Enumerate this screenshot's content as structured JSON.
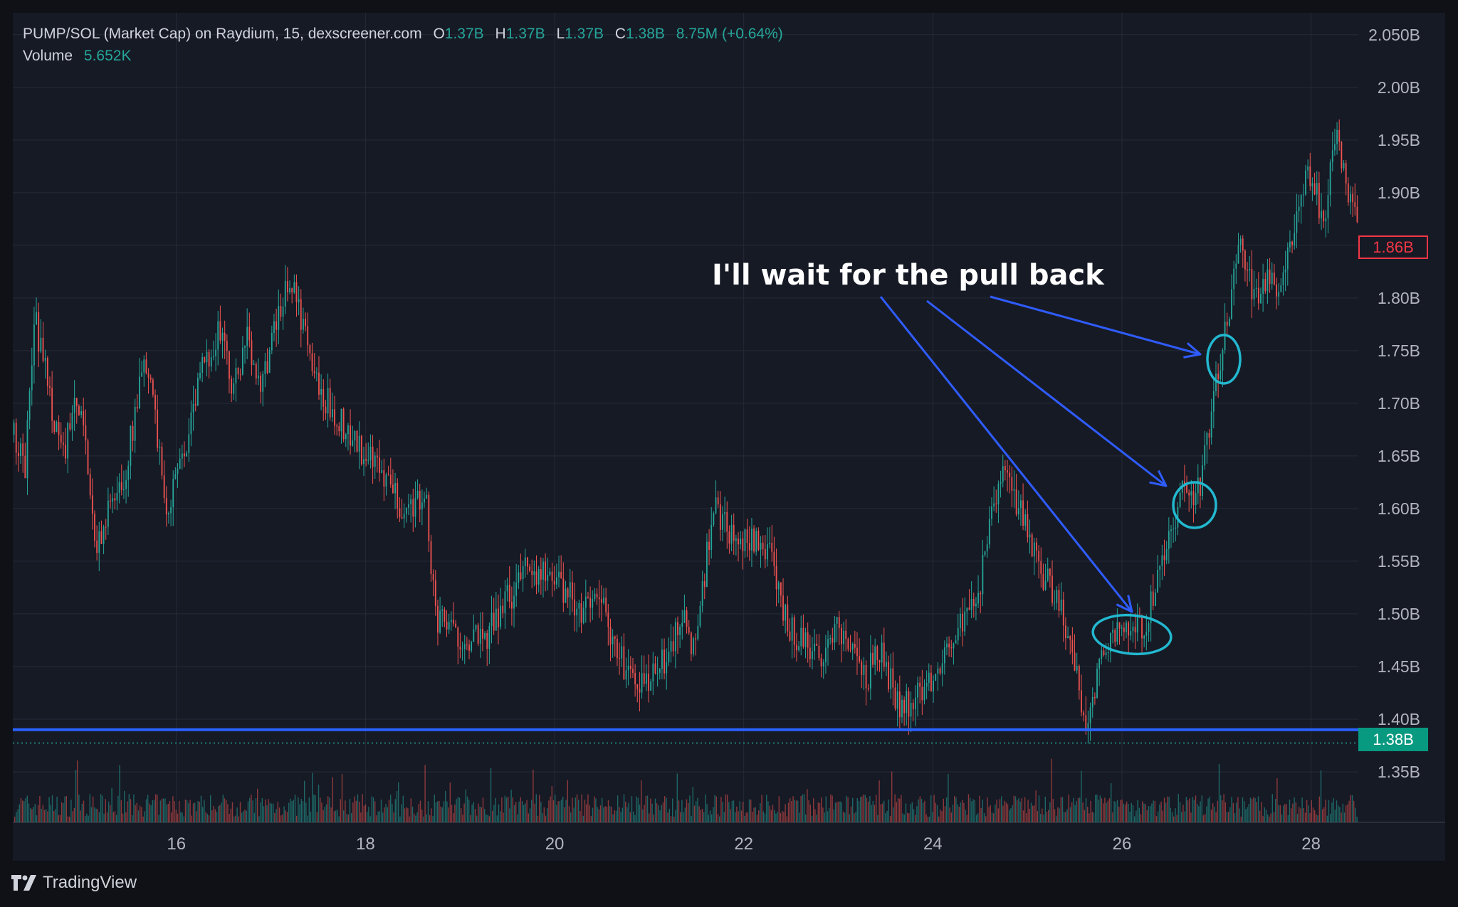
{
  "header": {
    "symbol": "PUMP/SOL (Market Cap) on Raydium, 15, dexscreener.com",
    "ohlc": [
      {
        "key": "O",
        "value": "1.37B"
      },
      {
        "key": "H",
        "value": "1.37B"
      },
      {
        "key": "L",
        "value": "1.37B"
      },
      {
        "key": "C",
        "value": "1.38B"
      }
    ],
    "change": "8.75M (+0.64%)",
    "volume_label": "Volume",
    "volume_value": "5.652K"
  },
  "annotation": {
    "text": "I'll wait for the pull back",
    "arrow_color": "#2f5cff",
    "circle_color": "#22b8cf"
  },
  "badges": {
    "last_price": "1.86B",
    "close_price": "1.38B"
  },
  "branding": {
    "name": "TradingView"
  },
  "colors": {
    "background": "#161a25",
    "up": "#26a69a",
    "down": "#ef5350",
    "grid": "#252a37",
    "support_line": "#2962ff",
    "axis_text": "#b2b5be"
  },
  "chart_data": {
    "type": "candlestick",
    "x_axis": {
      "tick_labels": [
        "16",
        "18",
        "20",
        "22",
        "24",
        "26",
        "28"
      ],
      "range": [
        14.27,
        28.5
      ]
    },
    "y_axis": {
      "tick_labels": [
        "2.050B",
        "2.00B",
        "1.95B",
        "1.90B",
        "1.85B",
        "1.80B",
        "1.75B",
        "1.70B",
        "1.65B",
        "1.60B",
        "1.55B",
        "1.50B",
        "1.45B",
        "1.40B",
        "1.35B"
      ],
      "tick_values": [
        2.05,
        2.0,
        1.95,
        1.9,
        1.85,
        1.8,
        1.75,
        1.7,
        1.65,
        1.6,
        1.55,
        1.5,
        1.45,
        1.4,
        1.35
      ],
      "range": [
        1.302,
        2.06
      ],
      "unit": "B"
    },
    "support_level": 1.39,
    "price_path": [
      [
        14.27,
        1.67
      ],
      [
        14.4,
        1.64
      ],
      [
        14.5,
        1.78
      ],
      [
        14.6,
        1.74
      ],
      [
        14.7,
        1.69
      ],
      [
        14.8,
        1.65
      ],
      [
        14.95,
        1.7
      ],
      [
        15.05,
        1.66
      ],
      [
        15.15,
        1.56
      ],
      [
        15.3,
        1.6
      ],
      [
        15.45,
        1.63
      ],
      [
        15.6,
        1.71
      ],
      [
        15.7,
        1.74
      ],
      [
        15.8,
        1.66
      ],
      [
        15.9,
        1.6
      ],
      [
        16.0,
        1.63
      ],
      [
        16.15,
        1.68
      ],
      [
        16.3,
        1.74
      ],
      [
        16.45,
        1.77
      ],
      [
        16.6,
        1.71
      ],
      [
        16.75,
        1.76
      ],
      [
        16.9,
        1.72
      ],
      [
        17.05,
        1.77
      ],
      [
        17.2,
        1.82
      ],
      [
        17.35,
        1.77
      ],
      [
        17.5,
        1.71
      ],
      [
        17.7,
        1.69
      ],
      [
        17.9,
        1.66
      ],
      [
        18.1,
        1.64
      ],
      [
        18.25,
        1.62
      ],
      [
        18.4,
        1.6
      ],
      [
        18.55,
        1.61
      ],
      [
        18.65,
        1.6
      ],
      [
        18.75,
        1.49
      ],
      [
        18.85,
        1.49
      ],
      [
        18.95,
        1.48
      ],
      [
        19.1,
        1.48
      ],
      [
        19.25,
        1.47
      ],
      [
        19.4,
        1.5
      ],
      [
        19.55,
        1.52
      ],
      [
        19.7,
        1.55
      ],
      [
        19.85,
        1.54
      ],
      [
        20.0,
        1.53
      ],
      [
        20.15,
        1.52
      ],
      [
        20.3,
        1.5
      ],
      [
        20.45,
        1.53
      ],
      [
        20.6,
        1.47
      ],
      [
        20.75,
        1.45
      ],
      [
        20.9,
        1.43
      ],
      [
        21.05,
        1.44
      ],
      [
        21.2,
        1.46
      ],
      [
        21.35,
        1.5
      ],
      [
        21.5,
        1.46
      ],
      [
        21.6,
        1.55
      ],
      [
        21.7,
        1.6
      ],
      [
        21.85,
        1.58
      ],
      [
        22.0,
        1.57
      ],
      [
        22.15,
        1.57
      ],
      [
        22.3,
        1.55
      ],
      [
        22.4,
        1.5
      ],
      [
        22.55,
        1.48
      ],
      [
        22.7,
        1.47
      ],
      [
        22.85,
        1.46
      ],
      [
        23.0,
        1.49
      ],
      [
        23.15,
        1.46
      ],
      [
        23.3,
        1.44
      ],
      [
        23.45,
        1.47
      ],
      [
        23.6,
        1.42
      ],
      [
        23.75,
        1.41
      ],
      [
        23.9,
        1.43
      ],
      [
        24.05,
        1.45
      ],
      [
        24.2,
        1.48
      ],
      [
        24.35,
        1.49
      ],
      [
        24.5,
        1.53
      ],
      [
        24.65,
        1.6
      ],
      [
        24.75,
        1.64
      ],
      [
        24.85,
        1.61
      ],
      [
        25.0,
        1.58
      ],
      [
        25.15,
        1.54
      ],
      [
        25.3,
        1.52
      ],
      [
        25.45,
        1.47
      ],
      [
        25.6,
        1.4
      ],
      [
        25.7,
        1.42
      ],
      [
        25.8,
        1.47
      ],
      [
        25.95,
        1.49
      ],
      [
        26.1,
        1.48
      ],
      [
        26.25,
        1.49
      ],
      [
        26.4,
        1.54
      ],
      [
        26.55,
        1.58
      ],
      [
        26.65,
        1.62
      ],
      [
        26.75,
        1.6
      ],
      [
        26.85,
        1.63
      ],
      [
        26.95,
        1.7
      ],
      [
        27.05,
        1.74
      ],
      [
        27.15,
        1.8
      ],
      [
        27.25,
        1.85
      ],
      [
        27.35,
        1.82
      ],
      [
        27.45,
        1.79
      ],
      [
        27.55,
        1.83
      ],
      [
        27.65,
        1.8
      ],
      [
        27.75,
        1.84
      ],
      [
        27.85,
        1.88
      ],
      [
        27.95,
        1.92
      ],
      [
        28.05,
        1.9
      ],
      [
        28.15,
        1.87
      ],
      [
        28.25,
        1.96
      ],
      [
        28.35,
        1.92
      ],
      [
        28.45,
        1.88
      ],
      [
        28.5,
        1.86
      ]
    ],
    "volume": {
      "description": "Volume histogram along the bottom of the pane",
      "last": 5.652
    }
  }
}
